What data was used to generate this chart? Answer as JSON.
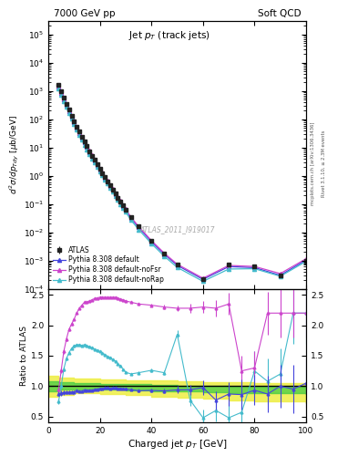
{
  "title_left": "7000 GeV pp",
  "title_right": "Soft QCD",
  "plot_title": "Jet p_{T} (track jets)",
  "xlabel": "Charged jet p_{T} [GeV]",
  "ylabel_main": "d^{2}sigma/dp_{Tdy} [mub/GeV]",
  "ylabel_ratio": "Ratio to ATLAS",
  "watermark": "ATLAS_2011_I919017",
  "right_label1": "mcplots.cern.ch [arXiv:1306.3436]",
  "right_label2": "Rivet 3.1.10, ≥ 2.3M events",
  "atlas_pt": [
    4,
    5,
    6,
    7,
    8,
    9,
    10,
    11,
    12,
    13,
    14,
    15,
    16,
    17,
    18,
    19,
    20,
    21,
    22,
    23,
    24,
    25,
    26,
    27,
    28,
    29,
    30,
    32,
    35,
    40,
    45,
    50,
    60,
    70,
    80,
    90,
    100
  ],
  "atlas_val": [
    1600,
    950,
    570,
    350,
    215,
    135,
    86,
    55,
    36,
    24,
    16,
    11,
    7.5,
    5.2,
    3.6,
    2.5,
    1.75,
    1.25,
    0.88,
    0.63,
    0.455,
    0.325,
    0.235,
    0.17,
    0.122,
    0.088,
    0.064,
    0.034,
    0.016,
    0.005,
    0.0018,
    0.00072,
    0.00022,
    0.0007,
    0.0006,
    0.0003,
    0.001
  ],
  "atlas_err": [
    80,
    47,
    28,
    17,
    11,
    6.7,
    4.3,
    2.8,
    1.8,
    1.2,
    0.8,
    0.55,
    0.38,
    0.26,
    0.18,
    0.125,
    0.088,
    0.063,
    0.044,
    0.032,
    0.023,
    0.016,
    0.012,
    0.0085,
    0.0061,
    0.0044,
    0.0032,
    0.0017,
    0.0008,
    0.00025,
    9e-05,
    3.6e-05,
    1.1e-05,
    3.5e-05,
    3e-05,
    1.5e-05,
    5e-05
  ],
  "py_default_pt": [
    4,
    5,
    6,
    7,
    8,
    9,
    10,
    11,
    12,
    13,
    14,
    15,
    16,
    17,
    18,
    19,
    20,
    21,
    22,
    23,
    24,
    25,
    26,
    27,
    28,
    29,
    30,
    32,
    35,
    40,
    45,
    50,
    60,
    70,
    80,
    90,
    100
  ],
  "py_default_val": [
    1400,
    840,
    510,
    315,
    194,
    122,
    78,
    51,
    33,
    22,
    15,
    10.2,
    7.0,
    4.85,
    3.4,
    2.38,
    1.68,
    1.2,
    0.855,
    0.615,
    0.44,
    0.315,
    0.228,
    0.163,
    0.118,
    0.084,
    0.061,
    0.032,
    0.0148,
    0.00465,
    0.00166,
    0.000675,
    0.000215,
    0.00061,
    0.00056,
    0.0003,
    0.00105
  ],
  "py_nofsr_pt": [
    4,
    5,
    6,
    7,
    8,
    9,
    10,
    11,
    12,
    13,
    14,
    15,
    16,
    17,
    18,
    19,
    20,
    21,
    22,
    23,
    24,
    25,
    26,
    27,
    28,
    29,
    30,
    32,
    35,
    40,
    45,
    50,
    60,
    70,
    80,
    90,
    100
  ],
  "py_nofsr_val": [
    1500,
    900,
    545,
    337,
    208,
    131,
    84,
    54,
    35.5,
    23.5,
    16,
    11.0,
    7.6,
    5.25,
    3.7,
    2.58,
    1.83,
    1.3,
    0.93,
    0.665,
    0.48,
    0.342,
    0.247,
    0.178,
    0.128,
    0.092,
    0.067,
    0.035,
    0.0162,
    0.0051,
    0.00182,
    0.00074,
    0.000236,
    0.00067,
    0.000615,
    0.000345,
    0.00116
  ],
  "py_norap_pt": [
    4,
    5,
    6,
    7,
    8,
    9,
    10,
    11,
    12,
    13,
    14,
    15,
    16,
    17,
    18,
    19,
    20,
    21,
    22,
    23,
    24,
    25,
    26,
    27,
    28,
    29,
    30,
    32,
    35,
    40,
    45,
    50,
    60,
    70,
    80,
    90,
    100
  ],
  "py_norap_val": [
    1200,
    720,
    435,
    268,
    165,
    103,
    66,
    43,
    28,
    18.5,
    12.6,
    8.6,
    5.9,
    4.1,
    2.88,
    2.01,
    1.43,
    1.02,
    0.728,
    0.524,
    0.375,
    0.268,
    0.194,
    0.139,
    0.1,
    0.072,
    0.052,
    0.0275,
    0.0126,
    0.00397,
    0.00141,
    0.000572,
    0.000183,
    0.0005,
    0.000513,
    0.000277,
    0.00093
  ],
  "ratio_default_pt": [
    4,
    5,
    6,
    7,
    8,
    9,
    10,
    11,
    12,
    13,
    14,
    15,
    16,
    17,
    18,
    19,
    20,
    21,
    22,
    23,
    24,
    25,
    26,
    27,
    28,
    29,
    30,
    32,
    35,
    40,
    45,
    50,
    55,
    60,
    65,
    70,
    75,
    80,
    85,
    90,
    95,
    100
  ],
  "ratio_default_val": [
    0.875,
    0.884,
    0.895,
    0.9,
    0.902,
    0.904,
    0.907,
    0.927,
    0.917,
    0.917,
    0.937,
    0.927,
    0.933,
    0.933,
    0.944,
    0.952,
    0.96,
    0.96,
    0.971,
    0.976,
    0.967,
    0.969,
    0.97,
    0.959,
    0.967,
    0.955,
    0.953,
    0.941,
    0.925,
    0.93,
    0.922,
    0.938,
    0.94,
    0.977,
    0.77,
    0.871,
    0.86,
    0.933,
    0.87,
    1.0,
    0.95,
    1.05
  ],
  "ratio_default_err": [
    0.04,
    0.04,
    0.035,
    0.03,
    0.03,
    0.025,
    0.02,
    0.02,
    0.02,
    0.02,
    0.018,
    0.018,
    0.016,
    0.016,
    0.015,
    0.015,
    0.014,
    0.014,
    0.013,
    0.013,
    0.013,
    0.013,
    0.013,
    0.013,
    0.013,
    0.014,
    0.015,
    0.016,
    0.02,
    0.03,
    0.04,
    0.06,
    0.08,
    0.12,
    0.15,
    0.2,
    0.25,
    0.25,
    0.3,
    0.35,
    0.4,
    0.4
  ],
  "ratio_nofsr_pt": [
    4,
    5,
    6,
    7,
    8,
    9,
    10,
    11,
    12,
    13,
    14,
    15,
    16,
    17,
    18,
    19,
    20,
    21,
    22,
    23,
    24,
    25,
    26,
    27,
    28,
    29,
    30,
    32,
    35,
    40,
    45,
    50,
    55,
    60,
    65,
    70,
    75,
    80,
    85,
    90,
    95,
    100
  ],
  "ratio_nofsr_val": [
    0.94,
    1.26,
    1.57,
    1.77,
    1.93,
    2.02,
    2.1,
    2.2,
    2.28,
    2.33,
    2.38,
    2.38,
    2.4,
    2.42,
    2.44,
    2.45,
    2.46,
    2.46,
    2.46,
    2.46,
    2.46,
    2.46,
    2.46,
    2.45,
    2.43,
    2.42,
    2.4,
    2.38,
    2.35,
    2.33,
    2.3,
    2.28,
    2.28,
    2.3,
    2.28,
    2.35,
    1.25,
    1.3,
    2.2,
    2.2,
    2.2,
    2.2
  ],
  "ratio_nofsr_err": [
    0.04,
    0.04,
    0.035,
    0.03,
    0.025,
    0.02,
    0.02,
    0.018,
    0.016,
    0.015,
    0.014,
    0.013,
    0.012,
    0.012,
    0.011,
    0.011,
    0.01,
    0.01,
    0.01,
    0.01,
    0.01,
    0.01,
    0.01,
    0.01,
    0.011,
    0.012,
    0.013,
    0.015,
    0.018,
    0.025,
    0.035,
    0.05,
    0.07,
    0.1,
    0.13,
    0.18,
    0.25,
    0.28,
    0.35,
    0.4,
    0.4,
    0.4
  ],
  "ratio_norap_pt": [
    4,
    5,
    6,
    7,
    8,
    9,
    10,
    11,
    12,
    13,
    14,
    15,
    16,
    17,
    18,
    19,
    20,
    21,
    22,
    23,
    24,
    25,
    26,
    27,
    28,
    29,
    30,
    32,
    35,
    40,
    45,
    50,
    55,
    60,
    65,
    70,
    75,
    80,
    85,
    90,
    95,
    100
  ],
  "ratio_norap_val": [
    0.75,
    1.0,
    1.28,
    1.45,
    1.55,
    1.62,
    1.66,
    1.68,
    1.68,
    1.67,
    1.68,
    1.66,
    1.65,
    1.63,
    1.61,
    1.59,
    1.57,
    1.54,
    1.52,
    1.49,
    1.47,
    1.44,
    1.41,
    1.37,
    1.33,
    1.28,
    1.23,
    1.2,
    1.22,
    1.26,
    1.22,
    1.85,
    0.77,
    0.48,
    0.6,
    0.48,
    0.57,
    1.25,
    1.08,
    1.2,
    2.2,
    2.2
  ],
  "ratio_norap_err": [
    0.04,
    0.04,
    0.035,
    0.03,
    0.025,
    0.02,
    0.02,
    0.018,
    0.016,
    0.015,
    0.014,
    0.013,
    0.012,
    0.012,
    0.011,
    0.011,
    0.01,
    0.01,
    0.01,
    0.01,
    0.01,
    0.01,
    0.01,
    0.01,
    0.011,
    0.012,
    0.013,
    0.015,
    0.018,
    0.025,
    0.035,
    0.07,
    0.1,
    0.14,
    0.18,
    0.25,
    0.3,
    0.32,
    0.38,
    0.42,
    0.5,
    0.5
  ],
  "green_band_x": [
    0,
    4,
    10,
    20,
    30,
    40,
    50,
    60,
    70,
    80,
    100
  ],
  "green_band_lo": [
    0.92,
    0.94,
    0.95,
    0.94,
    0.93,
    0.92,
    0.91,
    0.9,
    0.89,
    0.88,
    0.87
  ],
  "green_band_hi": [
    1.08,
    1.06,
    1.05,
    1.04,
    1.03,
    1.02,
    1.01,
    1.0,
    0.99,
    0.99,
    0.99
  ],
  "yellow_band_x": [
    0,
    4,
    10,
    20,
    30,
    40,
    50,
    60,
    70,
    80,
    100
  ],
  "yellow_band_lo": [
    0.83,
    0.86,
    0.88,
    0.87,
    0.85,
    0.83,
    0.81,
    0.79,
    0.77,
    0.75,
    0.72
  ],
  "yellow_band_hi": [
    1.17,
    1.14,
    1.12,
    1.11,
    1.1,
    1.09,
    1.08,
    1.07,
    1.06,
    1.05,
    1.04
  ],
  "color_atlas": "#222222",
  "color_default": "#4444dd",
  "color_nofsr": "#cc44cc",
  "color_norap": "#44bbcc",
  "color_green": "#44cc44",
  "color_yellow": "#eeee44",
  "xlim": [
    0,
    100
  ],
  "ylim_main_lo": 0.0001,
  "ylim_main_hi": 300000.0,
  "ylim_ratio": [
    0.4,
    2.6
  ],
  "ratio_yticks": [
    0.5,
    1.0,
    1.5,
    2.0,
    2.5
  ]
}
